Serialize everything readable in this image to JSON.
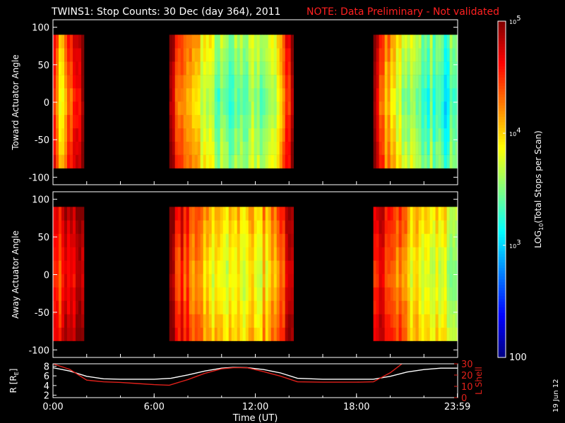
{
  "title": {
    "main": "TWINS1: Stop Counts: 30 Dec (day 364), 2011",
    "note": "NOTE: Data Preliminary - Not validated"
  },
  "footer_date": "19 Jun 12",
  "colors": {
    "note": "#ff2020",
    "lshell": "#e0201a",
    "radius": "#ffffff",
    "background": "#000000"
  },
  "colorbar": {
    "label_prefix": "LOG",
    "label_sub": "10",
    "label_suffix": "(Total Stops per Scan)",
    "ticks": [
      {
        "value": 100,
        "label": "100"
      },
      {
        "value": 1000,
        "label": "10",
        "exp": "3"
      },
      {
        "value": 10000,
        "label": "10",
        "exp": "4"
      },
      {
        "value": 100000,
        "label": "10",
        "exp": "5"
      }
    ],
    "scale": "log",
    "range": [
      100,
      100000
    ],
    "colormap": "jet"
  },
  "chart_data": [
    {
      "type": "heatmap",
      "panel": "toward",
      "ylabel": "Toward Actuator Angle",
      "ylim": [
        -110,
        110
      ],
      "yticks": [
        -100,
        -50,
        0,
        50,
        100
      ],
      "angle_range": [
        -88,
        90
      ],
      "xlim_hours": [
        0,
        24
      ],
      "coverage_hours": [
        [
          0,
          1.7
        ],
        [
          6.9,
          14.2
        ],
        [
          19.0,
          24
        ]
      ],
      "level_profile_log10": [
        {
          "t": 0.0,
          "v": 4.45
        },
        {
          "t": 0.3,
          "v": 3.9
        },
        {
          "t": 0.9,
          "v": 4.2
        },
        {
          "t": 1.4,
          "v": 4.7
        },
        {
          "t": 1.7,
          "v": 4.85
        },
        {
          "t": 6.9,
          "v": 4.8
        },
        {
          "t": 7.3,
          "v": 4.3
        },
        {
          "t": 8.5,
          "v": 3.8
        },
        {
          "t": 9.8,
          "v": 3.45
        },
        {
          "t": 11.0,
          "v": 3.35
        },
        {
          "t": 12.5,
          "v": 3.5
        },
        {
          "t": 13.5,
          "v": 3.9
        },
        {
          "t": 14.0,
          "v": 4.55
        },
        {
          "t": 14.2,
          "v": 4.85
        },
        {
          "t": 19.0,
          "v": 4.75
        },
        {
          "t": 19.4,
          "v": 4.35
        },
        {
          "t": 20.3,
          "v": 3.8
        },
        {
          "t": 21.5,
          "v": 3.35
        },
        {
          "t": 23.0,
          "v": 3.2
        },
        {
          "t": 24.0,
          "v": 3.2
        }
      ]
    },
    {
      "type": "heatmap",
      "panel": "away",
      "ylabel": "Away Actuator Angle",
      "ylim": [
        -110,
        110
      ],
      "yticks": [
        -100,
        -50,
        0,
        50,
        100
      ],
      "angle_range": [
        -88,
        90
      ],
      "xlim_hours": [
        0,
        24
      ],
      "coverage_hours": [
        [
          0,
          1.7
        ],
        [
          6.9,
          14.2
        ],
        [
          19.0,
          24
        ]
      ],
      "level_profile_log10": [
        {
          "t": 0.0,
          "v": 4.6
        },
        {
          "t": 0.6,
          "v": 4.4
        },
        {
          "t": 1.2,
          "v": 4.75
        },
        {
          "t": 1.7,
          "v": 4.85
        },
        {
          "t": 6.9,
          "v": 4.8
        },
        {
          "t": 7.5,
          "v": 4.45
        },
        {
          "t": 8.8,
          "v": 3.95
        },
        {
          "t": 10.0,
          "v": 3.7
        },
        {
          "t": 11.5,
          "v": 3.75
        },
        {
          "t": 13.0,
          "v": 4.0
        },
        {
          "t": 14.0,
          "v": 4.6
        },
        {
          "t": 14.2,
          "v": 4.75
        },
        {
          "t": 19.0,
          "v": 4.7
        },
        {
          "t": 19.5,
          "v": 4.55
        },
        {
          "t": 20.5,
          "v": 4.2
        },
        {
          "t": 21.5,
          "v": 3.8
        },
        {
          "t": 23.0,
          "v": 3.6
        },
        {
          "t": 24.0,
          "v": 3.55
        }
      ]
    },
    {
      "type": "line",
      "panel": "orbit",
      "xlabel": "Time (UT)",
      "xticks": [
        {
          "t": 0,
          "label": "0:00"
        },
        {
          "t": 6,
          "label": "6:00"
        },
        {
          "t": 12,
          "label": "12:00"
        },
        {
          "t": 18,
          "label": "18:00"
        },
        {
          "t": 23.983,
          "label": "23:59"
        }
      ],
      "left_axis": {
        "label": "R [R",
        "label_sub": "E",
        "label_end": "]",
        "ylim": [
          1.5,
          8.5
        ],
        "yticks": [
          2,
          4,
          6,
          8
        ]
      },
      "right_axis": {
        "label": "L Shell",
        "ylim": [
          0,
          30
        ],
        "yticks": [
          0,
          10,
          20,
          30
        ]
      },
      "series": [
        {
          "axis": "left",
          "x": [
            0,
            1,
            2,
            3,
            4,
            5,
            6,
            7,
            8,
            9,
            10,
            10.7,
            11.5,
            12.5,
            13.5,
            14.5,
            16,
            18,
            19,
            20,
            21,
            22,
            23,
            24
          ],
          "y": [
            7.7,
            7.0,
            5.9,
            5.4,
            5.3,
            5.3,
            5.3,
            5.5,
            6.2,
            7.0,
            7.6,
            7.75,
            7.7,
            7.3,
            6.6,
            5.5,
            5.3,
            5.3,
            5.3,
            5.9,
            6.8,
            7.3,
            7.6,
            7.6
          ]
        },
        {
          "axis": "right",
          "x": [
            0,
            1,
            2,
            3,
            4,
            5,
            6,
            6.9,
            8,
            9,
            10,
            10.7,
            11.5,
            12.5,
            13.5,
            14.5,
            16,
            18,
            19,
            20,
            20.7
          ],
          "y": [
            30,
            25,
            15.5,
            14,
            13.5,
            12.5,
            11.5,
            11,
            16,
            21.5,
            25.5,
            26.5,
            26.5,
            23,
            19,
            14,
            13.7,
            13.7,
            14,
            22,
            30
          ]
        }
      ]
    }
  ]
}
